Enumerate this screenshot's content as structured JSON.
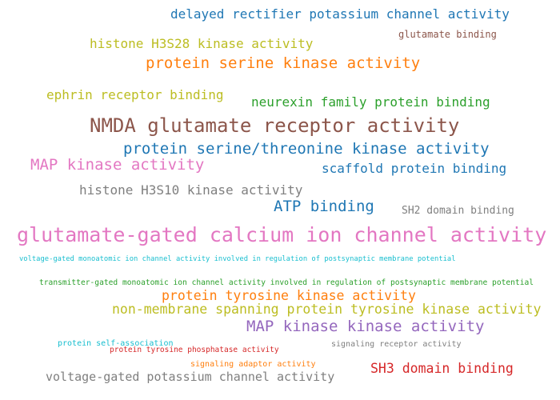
{
  "cloud": {
    "terms": [
      {
        "text": "delayed rectifier potassium channel activity",
        "color": "#1f77b4"
      },
      {
        "text": "glutamate binding",
        "color": "#8c564b"
      },
      {
        "text": "histone H3S28 kinase activity",
        "color": "#bcbd22"
      },
      {
        "text": "protein serine kinase activity",
        "color": "#ff7f0e"
      },
      {
        "text": "ephrin receptor binding",
        "color": "#bcbd22"
      },
      {
        "text": "neurexin family protein binding",
        "color": "#2ca02c"
      },
      {
        "text": "NMDA glutamate receptor activity",
        "color": "#8c564b"
      },
      {
        "text": "protein serine/threonine kinase activity",
        "color": "#1f77b4"
      },
      {
        "text": "MAP kinase activity",
        "color": "#e377c2"
      },
      {
        "text": "scaffold protein binding",
        "color": "#1f77b4"
      },
      {
        "text": "histone H3S10 kinase activity",
        "color": "#7f7f7f"
      },
      {
        "text": "ATP binding",
        "color": "#1f77b4"
      },
      {
        "text": "SH2 domain binding",
        "color": "#7f7f7f"
      },
      {
        "text": "glutamate-gated calcium ion channel activity",
        "color": "#e377c2"
      },
      {
        "text": "voltage-gated monoatomic ion channel activity involved in regulation of postsynaptic membrane potential",
        "color": "#17becf"
      },
      {
        "text": "transmitter-gated monoatomic ion channel activity involved in regulation of postsynaptic membrane potential",
        "color": "#2ca02c"
      },
      {
        "text": "protein tyrosine kinase activity",
        "color": "#ff7f0e"
      },
      {
        "text": "non-membrane spanning protein tyrosine kinase activity",
        "color": "#bcbd22"
      },
      {
        "text": "MAP kinase kinase activity",
        "color": "#9467bd"
      },
      {
        "text": "protein self-association",
        "color": "#17becf"
      },
      {
        "text": "protein tyrosine phosphatase activity",
        "color": "#d62728"
      },
      {
        "text": "signaling receptor activity",
        "color": "#7f7f7f"
      },
      {
        "text": "SH3 domain binding",
        "color": "#d62728"
      },
      {
        "text": "voltage-gated potassium channel activity",
        "color": "#7f7f7f"
      },
      {
        "text": "signaling adaptor activity",
        "color": "#ff7f0e"
      }
    ]
  }
}
